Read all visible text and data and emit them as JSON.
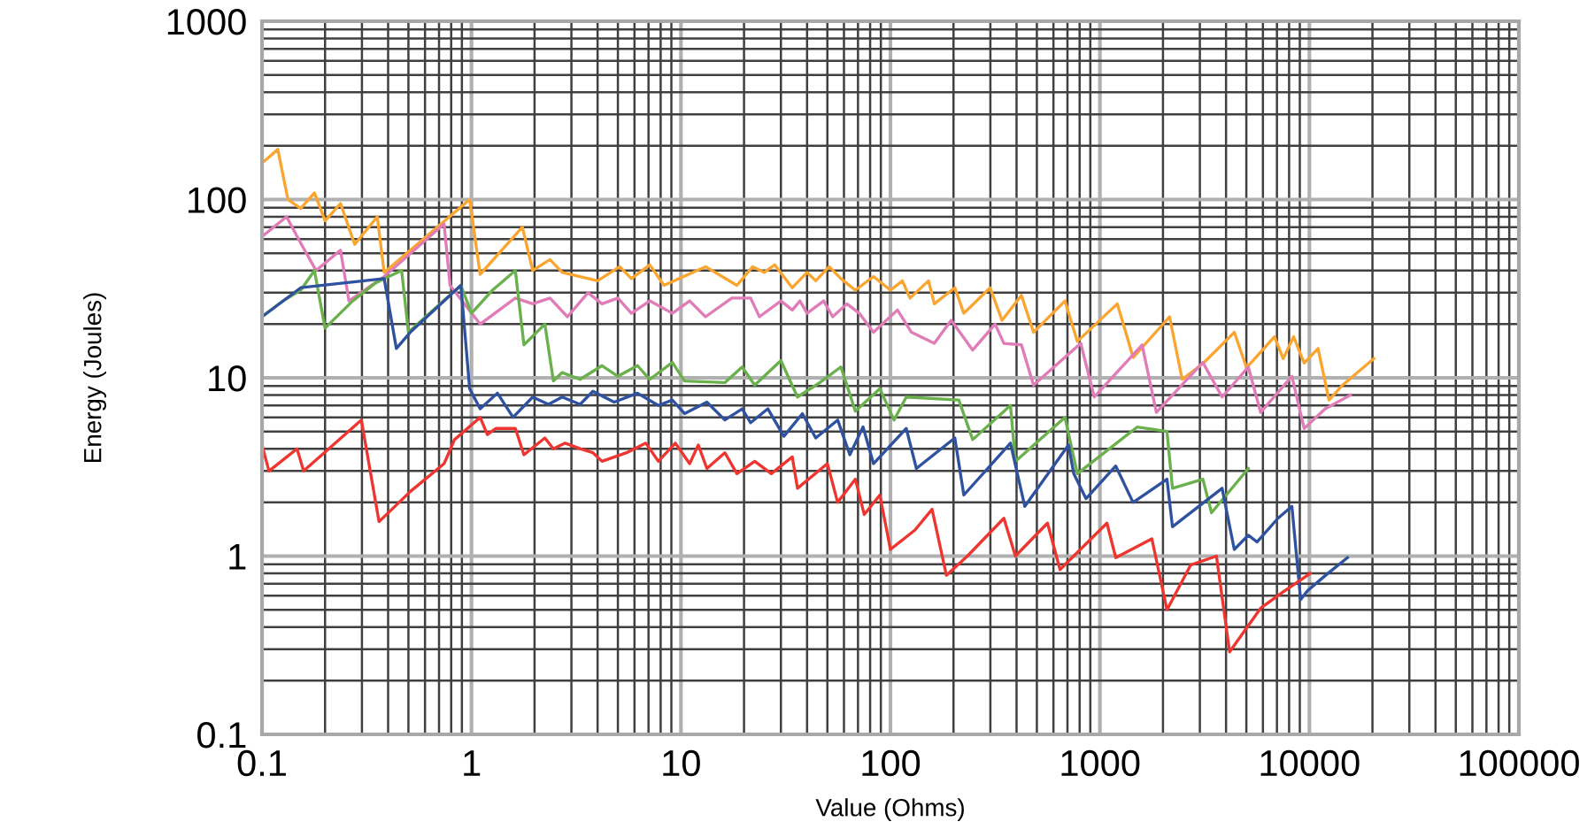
{
  "chart_data": {
    "type": "line",
    "xlabel": "Value (Ohms)",
    "ylabel": "Energy (Joules)",
    "log": "xy",
    "grid": true,
    "marker": "none",
    "line_style": "solid",
    "xlim": [
      0.1,
      100000
    ],
    "ylim": [
      0.1,
      1000
    ],
    "xticks": [
      0.1,
      1,
      10,
      100,
      1000,
      10000,
      100000
    ],
    "yticks": [
      0.1,
      1,
      10,
      100,
      1000
    ],
    "series": [
      {
        "color": "#fba531",
        "x": [
          0.1,
          0.119,
          0.133,
          0.153,
          0.178,
          0.2,
          0.237,
          0.277,
          0.355,
          0.383,
          0.98,
          1.1,
          1.75,
          1.96,
          2.37,
          2.71,
          4.0,
          5.1,
          5.8,
          7.1,
          8.3,
          13.1,
          18.5,
          22,
          25,
          28,
          34,
          40,
          44,
          51,
          58,
          68,
          83,
          100,
          114,
          124,
          152,
          162,
          203,
          224,
          299,
          341,
          422,
          482,
          681,
          780,
          1210,
          1310,
          1440,
          2150,
          2470,
          3100,
          4380,
          5010,
          6810,
          7500,
          8410,
          9440,
          11000,
          12400,
          14400,
          20300
        ],
        "values": [
          160,
          191,
          100,
          89,
          109,
          76,
          95,
          56,
          80,
          39,
          100,
          38,
          70,
          40,
          46,
          39,
          35,
          42,
          36,
          43,
          33,
          42,
          33,
          42,
          39,
          43,
          32,
          39,
          35,
          42,
          36,
          31,
          37,
          31,
          35,
          28,
          35,
          26,
          32,
          23,
          32,
          21,
          29,
          18,
          27,
          16,
          26,
          19,
          13,
          22,
          9.8,
          12,
          18,
          11.4,
          17,
          12.8,
          17,
          12.1,
          14.6,
          7.5,
          9.1,
          12.8
        ]
      },
      {
        "color": "#e07cb8",
        "x": [
          0.1,
          0.131,
          0.153,
          0.181,
          0.237,
          0.26,
          0.383,
          0.74,
          0.79,
          1.1,
          1.62,
          1.96,
          2.37,
          2.87,
          3.6,
          4.2,
          5.0,
          5.8,
          7.1,
          9.1,
          11,
          13.1,
          17.5,
          21.5,
          23.7,
          30,
          34,
          37,
          40,
          48,
          53,
          62,
          71,
          83,
          108,
          126,
          162,
          195,
          247,
          316,
          348,
          422,
          482,
          810,
          940,
          1590,
          1860,
          3100,
          3830,
          5110,
          5850,
          8250,
          9440,
          11900,
          15700
        ],
        "values": [
          62,
          80,
          57,
          40,
          52,
          27,
          37,
          73,
          33,
          20,
          28,
          26,
          28,
          22,
          30,
          26,
          28,
          23,
          27,
          23,
          27,
          22,
          28,
          28,
          22,
          27,
          24,
          27,
          23,
          27,
          22,
          26,
          23,
          18,
          24,
          18,
          15.6,
          21,
          14.3,
          20,
          15.6,
          15.3,
          9.1,
          15.6,
          7.8,
          15.3,
          6.4,
          12.2,
          7.8,
          11.5,
          6.4,
          10.2,
          5.2,
          6.7,
          8.0
        ]
      },
      {
        "color": "#6ab04c",
        "x": [
          0.1,
          0.126,
          0.153,
          0.178,
          0.2,
          0.271,
          0.348,
          0.383,
          0.464,
          0.5,
          0.89,
          1.0,
          1.26,
          1.62,
          1.78,
          2.24,
          2.46,
          2.71,
          3.3,
          4.2,
          5.0,
          6.2,
          7.1,
          9.1,
          10.4,
          16.2,
          19.6,
          22.5,
          30,
          36,
          46,
          58,
          68,
          89,
          104,
          119,
          212,
          247,
          374,
          395,
          681,
          780,
          1510,
          2090,
          2220,
          3100,
          3410,
          5110
        ],
        "values": [
          22,
          27,
          31,
          40,
          19,
          27,
          34,
          36,
          40,
          18,
          33,
          23,
          31,
          40,
          15.3,
          20,
          9.6,
          10.7,
          9.8,
          11.7,
          10.2,
          11.7,
          9.8,
          12.2,
          9.6,
          9.4,
          11.5,
          9.1,
          12.5,
          7.8,
          9.4,
          11.5,
          6.5,
          8.7,
          5.8,
          7.8,
          7.5,
          4.5,
          7.0,
          3.4,
          6.0,
          2.9,
          5.3,
          5.0,
          2.4,
          2.7,
          1.75,
          3.1
        ]
      },
      {
        "color": "#2f52a0",
        "x": [
          0.1,
          0.153,
          0.383,
          0.438,
          0.51,
          0.89,
          0.98,
          1.1,
          1.33,
          1.58,
          1.96,
          2.33,
          2.71,
          3.3,
          3.8,
          4.8,
          6.2,
          7.8,
          9.1,
          10.4,
          13.3,
          16.2,
          19.6,
          21.5,
          26,
          31,
          38,
          44,
          56,
          64,
          74,
          83,
          119,
          133,
          203,
          224,
          374,
          438,
          708,
          750,
          858,
          1190,
          1440,
          2090,
          2220,
          3830,
          4380,
          5110,
          5620,
          7080,
          8250,
          9080,
          9810,
          12100,
          15200
        ],
        "values": [
          22,
          32,
          36,
          14.6,
          18,
          33,
          8.7,
          6.7,
          8.2,
          6.0,
          7.8,
          7.1,
          7.8,
          7.1,
          8.4,
          7.3,
          8.2,
          7.0,
          7.5,
          6.3,
          7.3,
          5.8,
          6.7,
          5.6,
          6.7,
          4.7,
          6.3,
          4.6,
          5.8,
          3.7,
          5.3,
          3.3,
          5.2,
          3.1,
          4.6,
          2.2,
          4.3,
          1.9,
          4.2,
          2.9,
          2.1,
          3.2,
          2.0,
          2.7,
          1.46,
          2.4,
          1.09,
          1.31,
          1.2,
          1.63,
          1.9,
          0.57,
          0.64,
          0.79,
          0.98
        ]
      },
      {
        "color": "#ee3530",
        "x": [
          0.1,
          0.108,
          0.147,
          0.158,
          0.298,
          0.362,
          0.51,
          0.74,
          0.83,
          1.1,
          1.19,
          1.31,
          1.62,
          1.78,
          2.24,
          2.46,
          2.8,
          3.3,
          3.8,
          4.2,
          5.5,
          6.8,
          7.8,
          9.4,
          11,
          12.1,
          13.3,
          16.2,
          18.5,
          22.5,
          27,
          34,
          36,
          50,
          56,
          68,
          75,
          89,
          100,
          131,
          158,
          185,
          233,
          348,
          395,
          562,
          645,
          1080,
          1190,
          1770,
          2090,
          2710,
          3600,
          4160,
          5850,
          7500,
          10100
        ],
        "values": [
          4.2,
          3.0,
          4.0,
          3.0,
          5.8,
          1.56,
          2.3,
          3.3,
          4.5,
          6.0,
          4.8,
          5.2,
          5.2,
          3.7,
          4.6,
          4.0,
          4.3,
          4.0,
          3.8,
          3.4,
          3.8,
          4.3,
          3.4,
          4.3,
          3.3,
          4.2,
          3.1,
          3.8,
          2.9,
          3.4,
          2.9,
          3.6,
          2.4,
          3.3,
          2.0,
          2.7,
          1.71,
          2.2,
          1.09,
          1.4,
          1.83,
          0.78,
          1.0,
          1.63,
          1.0,
          1.53,
          0.84,
          1.53,
          0.98,
          1.25,
          0.5,
          0.89,
          1.0,
          0.29,
          0.51,
          0.63,
          0.8
        ]
      }
    ]
  }
}
